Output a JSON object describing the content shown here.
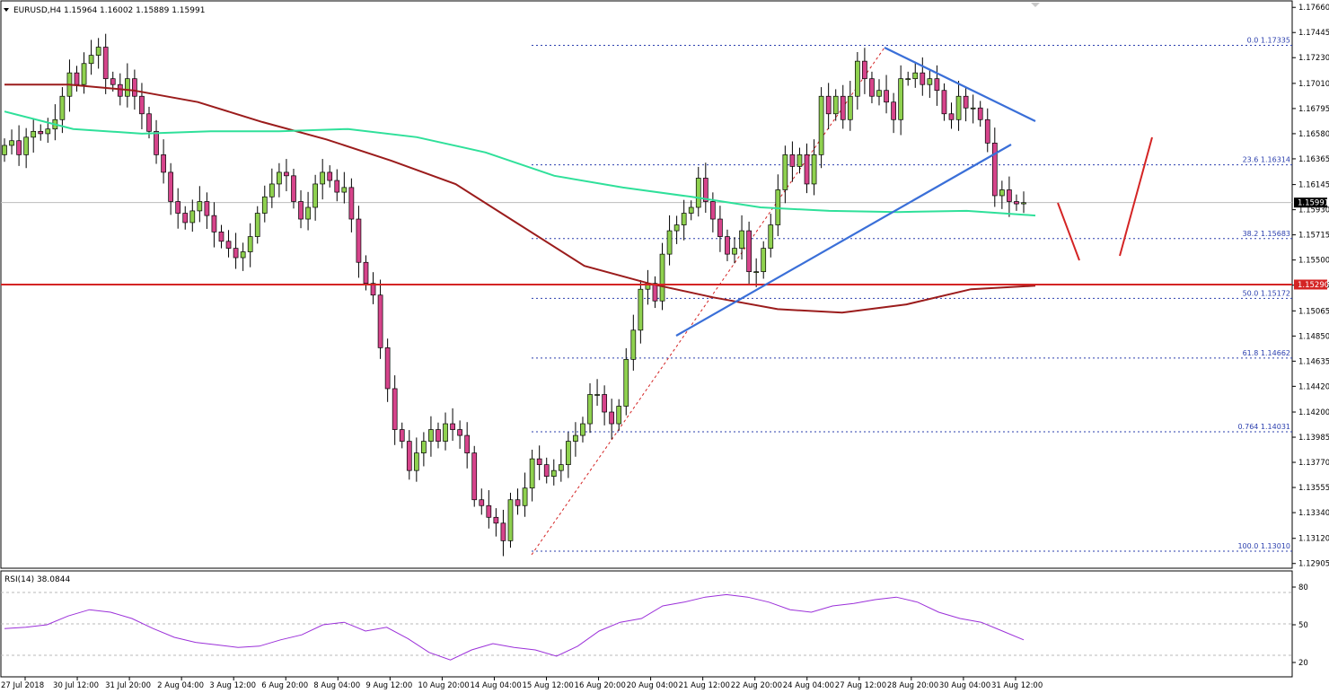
{
  "symbol_header": "EURUSD,H4  1.15964 1.16002 1.15889 1.15991",
  "rsi_header": "RSI(14) 38.0844",
  "colors": {
    "bull_body": "#8fd14f",
    "bear_body": "#d6448b",
    "candle_outline": "#000000",
    "ema_slow": "#9b1c1c",
    "ema_fast": "#2fe09a",
    "support_line": "#d42424",
    "trend_line": "#3a6fd8",
    "fib_line": "#2b3fae",
    "rsi_line": "#9b30d9",
    "forecast_arrow": "#d42424"
  },
  "chart_data": [
    {
      "type": "candlestick",
      "title": "EURUSD,H4",
      "ohlc_header": [
        "1.15964",
        "1.16002",
        "1.15889",
        "1.15991"
      ],
      "x_tick_labels": [
        "27 Jul 2018",
        "30 Jul 12:00",
        "31 Jul 20:00",
        "2 Aug 04:00",
        "3 Aug 12:00",
        "6 Aug 20:00",
        "8 Aug 04:00",
        "9 Aug 12:00",
        "10 Aug 20:00",
        "14 Aug 04:00",
        "15 Aug 12:00",
        "16 Aug 20:00",
        "20 Aug 04:00",
        "21 Aug 12:00",
        "22 Aug 20:00",
        "24 Aug 04:00",
        "27 Aug 12:00",
        "28 Aug 20:00",
        "30 Aug 04:00",
        "31 Aug 12:00"
      ],
      "y_ticks": [
        "1.17660",
        "1.17445",
        "1.17230",
        "1.17010",
        "1.16795",
        "1.16580",
        "1.16365",
        "1.16145",
        "1.15930",
        "1.15715",
        "1.15500",
        "1.15285",
        "1.15065",
        "1.14850",
        "1.14635",
        "1.14420",
        "1.14200",
        "1.13985",
        "1.13770",
        "1.13555",
        "1.13340",
        "1.13120",
        "1.12905"
      ],
      "ylim": [
        1.1288,
        1.177
      ],
      "close_series": [
        1.1648,
        1.1652,
        1.164,
        1.1655,
        1.166,
        1.1658,
        1.1662,
        1.167,
        1.169,
        1.171,
        1.17,
        1.1718,
        1.1725,
        1.1732,
        1.1705,
        1.17,
        1.169,
        1.1705,
        1.169,
        1.1675,
        1.166,
        1.164,
        1.1625,
        1.16,
        1.159,
        1.1582,
        1.1592,
        1.16,
        1.1588,
        1.1574,
        1.1566,
        1.156,
        1.1552,
        1.1557,
        1.157,
        1.159,
        1.1604,
        1.1615,
        1.1625,
        1.1622,
        1.16,
        1.1585,
        1.1595,
        1.1615,
        1.1625,
        1.1618,
        1.1608,
        1.1612,
        1.1585,
        1.1548,
        1.153,
        1.152,
        1.1475,
        1.144,
        1.1405,
        1.1395,
        1.137,
        1.1385,
        1.1395,
        1.1405,
        1.1395,
        1.141,
        1.1405,
        1.14,
        1.1385,
        1.1345,
        1.134,
        1.133,
        1.1325,
        1.131,
        1.1345,
        1.134,
        1.1355,
        1.138,
        1.1375,
        1.1365,
        1.137,
        1.1375,
        1.1395,
        1.14,
        1.141,
        1.1435,
        1.1435,
        1.142,
        1.141,
        1.1425,
        1.1465,
        1.149,
        1.1525,
        1.153,
        1.1515,
        1.1555,
        1.1575,
        1.158,
        1.159,
        1.1595,
        1.162,
        1.16,
        1.1585,
        1.157,
        1.1555,
        1.156,
        1.1575,
        1.154,
        1.154,
        1.156,
        1.158,
        1.161,
        1.164,
        1.163,
        1.164,
        1.1615,
        1.164,
        1.169,
        1.1675,
        1.169,
        1.167,
        1.169,
        1.172,
        1.1705,
        1.169,
        1.1695,
        1.1685,
        1.167,
        1.1705,
        1.1705,
        1.171,
        1.17,
        1.1705,
        1.1695,
        1.1675,
        1.167,
        1.169,
        1.168,
        1.168,
        1.167,
        1.165,
        1.1605,
        1.161,
        1.16,
        1.1598,
        1.1599
      ],
      "moving_averages": [
        {
          "color": "#9b1c1c",
          "values": [
            1.17,
            1.17,
            1.1695,
            1.1685,
            1.1668,
            1.1653,
            1.1635,
            1.1615,
            1.158,
            1.1545,
            1.153,
            1.1518,
            1.1508,
            1.1505,
            1.1512,
            1.1525,
            1.1528
          ]
        },
        {
          "color": "#2fe09a",
          "values": [
            1.1677,
            1.1662,
            1.1658,
            1.166,
            1.166,
            1.1662,
            1.1655,
            1.1642,
            1.1622,
            1.1612,
            1.1604,
            1.1595,
            1.1592,
            1.1591,
            1.1592,
            1.1588
          ]
        }
      ],
      "annotations": {
        "current_price": "1.15991",
        "support_level": "1.15290",
        "fib_levels": [
          {
            "label": "0.0 1.17335",
            "price": 1.17335
          },
          {
            "label": "23.6 1.16314",
            "price": 1.16314
          },
          {
            "label": "38.2 1.15683",
            "price": 1.15683
          },
          {
            "label": "50.0 1.15172",
            "price": 1.15172
          },
          {
            "label": "61.8 1.14662",
            "price": 1.14662
          },
          {
            "label": "0.764 1.14031",
            "price": 1.14031
          },
          {
            "label": "100.0 1.13010",
            "price": 1.1301
          }
        ]
      }
    },
    {
      "type": "line",
      "title": "RSI(14) 38.0844",
      "y_ticks": [
        "80",
        "50",
        "20"
      ],
      "ylim": [
        10,
        90
      ],
      "values": [
        47,
        48,
        50,
        57,
        62,
        60,
        55,
        47,
        40,
        36,
        34,
        32,
        33,
        38,
        42,
        50,
        52,
        45,
        48,
        39,
        28,
        22,
        30,
        35,
        32,
        30,
        25,
        33,
        45,
        52,
        55,
        65,
        68,
        72,
        74,
        72,
        68,
        62,
        60,
        65,
        67,
        70,
        72,
        68,
        60,
        55,
        52,
        45,
        38
      ]
    }
  ]
}
